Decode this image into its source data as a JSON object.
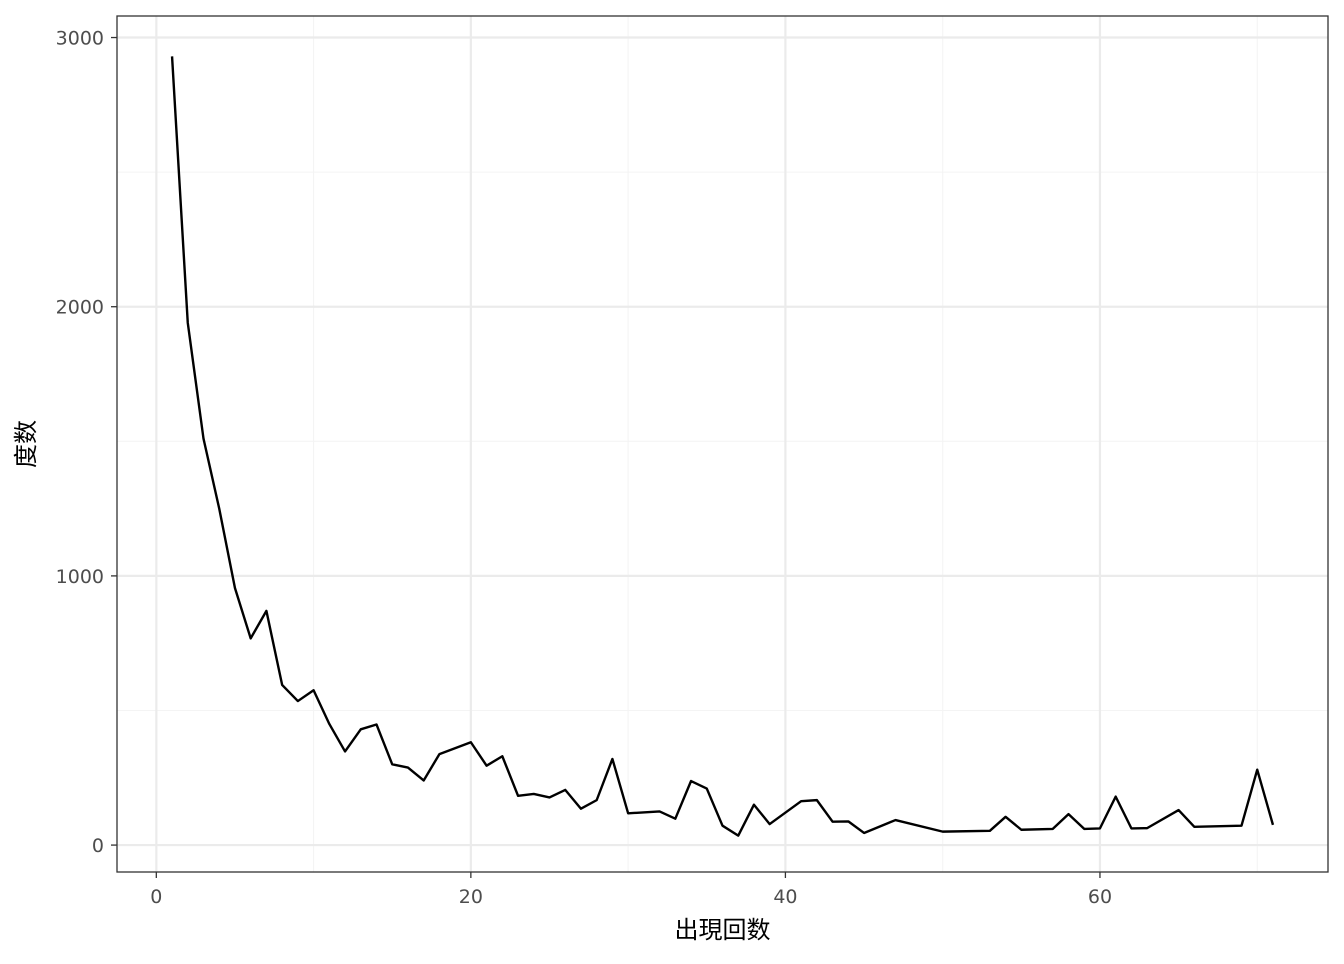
{
  "chart_data": {
    "type": "line",
    "title": "",
    "xlabel": "出現回数",
    "ylabel": "度数",
    "xlim": [
      -2.5,
      74.5
    ],
    "ylim": [
      -100,
      3080
    ],
    "x_ticks": [
      0,
      20,
      40,
      60
    ],
    "x_tick_labels": [
      "0",
      "20",
      "40",
      "60"
    ],
    "y_ticks": [
      0,
      1000,
      2000,
      3000
    ],
    "y_tick_labels": [
      "0",
      "1000",
      "2000",
      "3000"
    ],
    "x_minor_ticks": [
      10,
      30,
      50,
      70
    ],
    "y_minor_ticks": [
      500,
      1500,
      2500
    ],
    "grid": true,
    "legend": "none",
    "colors": {
      "line": "#000000",
      "grid_major": "#ebebeb",
      "grid_minor": "#f4f4f4",
      "panel_border": "#333333",
      "tick_label": "#4d4d4d"
    },
    "series": [
      {
        "x": [
          1,
          2,
          3,
          4,
          5,
          6,
          7,
          8,
          9,
          10,
          11,
          12,
          13,
          14,
          15,
          16,
          17,
          18,
          20,
          21,
          22,
          23,
          24,
          25,
          26,
          27,
          28,
          29,
          30,
          32,
          33,
          34,
          35,
          36,
          37,
          38,
          39,
          41,
          42,
          43,
          44,
          45,
          47,
          50,
          53,
          54,
          55,
          57,
          58,
          59,
          60,
          61,
          62,
          63,
          65,
          66,
          69,
          70,
          71
        ],
        "y": [
          2930,
          1940,
          1510,
          1250,
          955,
          768,
          870,
          595,
          535,
          575,
          450,
          348,
          430,
          448,
          300,
          288,
          240,
          338,
          382,
          295,
          330,
          183,
          190,
          177,
          205,
          135,
          167,
          320,
          118,
          125,
          98,
          238,
          210,
          72,
          35,
          150,
          78,
          163,
          167,
          87,
          88,
          45,
          93,
          50,
          53,
          105,
          57,
          60,
          115,
          60,
          62,
          180,
          62,
          63,
          130,
          68,
          72,
          280,
          75
        ]
      }
    ]
  }
}
